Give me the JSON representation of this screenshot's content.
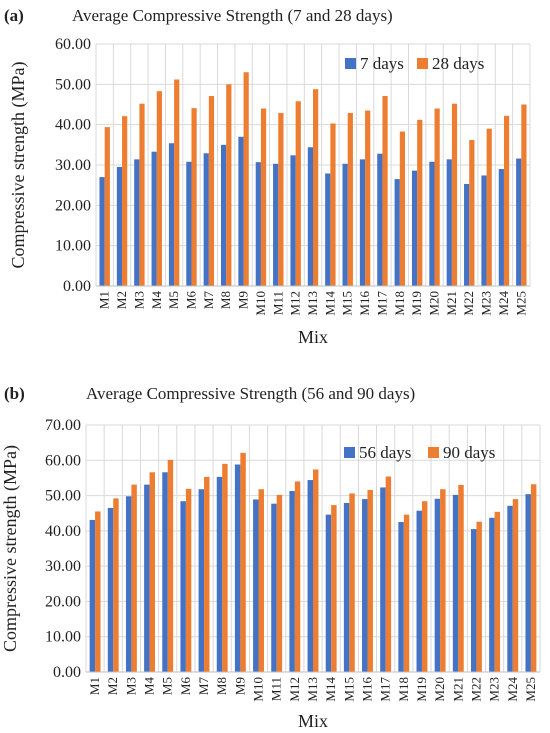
{
  "colors": {
    "series1": "#4472c4",
    "series2": "#ed7d31",
    "grid": "#d9d9d9"
  },
  "chart_data": [
    {
      "panel_label": "(a)",
      "type": "bar",
      "title": "Average Compressive Strength (7 and 28 days)",
      "xlabel": "Mix",
      "ylabel": "Compressive strength (MPa)",
      "ylim": [
        0,
        60
      ],
      "yticks": [
        "0.00",
        "10.00",
        "20.00",
        "30.00",
        "40.00",
        "50.00",
        "60.00"
      ],
      "grid": true,
      "legend_position": "top-right",
      "categories": [
        "M1",
        "M2",
        "M3",
        "M4",
        "M5",
        "M6",
        "M7",
        "M8",
        "M9",
        "M10",
        "M11",
        "M12",
        "M13",
        "M14",
        "M15",
        "M16",
        "M17",
        "M18",
        "M19",
        "M20",
        "M21",
        "M22",
        "M23",
        "M24",
        "M25"
      ],
      "series": [
        {
          "name": "7 days",
          "values": [
            27.0,
            29.5,
            31.4,
            33.3,
            35.4,
            30.8,
            32.9,
            35.0,
            37.0,
            30.7,
            30.3,
            32.4,
            34.4,
            27.9,
            30.3,
            31.4,
            32.8,
            26.5,
            28.6,
            30.8,
            31.4,
            25.3,
            27.4,
            29.0,
            31.6
          ]
        },
        {
          "name": "28 days",
          "values": [
            39.4,
            42.1,
            45.2,
            48.3,
            51.2,
            44.1,
            47.1,
            50.0,
            53.0,
            44.0,
            42.9,
            45.8,
            48.8,
            40.3,
            42.9,
            43.5,
            47.1,
            38.3,
            41.2,
            44.0,
            45.2,
            36.2,
            39.0,
            42.2,
            45.0
          ]
        }
      ]
    },
    {
      "panel_label": "(b)",
      "type": "bar",
      "title": "Average Compressive Strength (56 and 90 days)",
      "xlabel": "Mix",
      "ylabel": "Compressive strength (MPa)",
      "ylim": [
        0,
        70
      ],
      "yticks": [
        "0.00",
        "10.00",
        "20.00",
        "30.00",
        "40.00",
        "50.00",
        "60.00",
        "70.00"
      ],
      "grid": true,
      "legend_position": "top-right",
      "categories": [
        "M1",
        "M2",
        "M3",
        "M4",
        "M5",
        "M6",
        "M7",
        "M8",
        "M9",
        "M10",
        "M11",
        "M12",
        "M13",
        "M14",
        "M15",
        "M16",
        "M17",
        "M18",
        "M19",
        "M20",
        "M21",
        "M22",
        "M23",
        "M24",
        "M25"
      ],
      "series": [
        {
          "name": "56 days",
          "values": [
            43.1,
            46.5,
            49.8,
            53.1,
            56.6,
            48.4,
            51.8,
            55.3,
            58.8,
            48.9,
            47.7,
            51.3,
            54.4,
            44.6,
            47.9,
            49.0,
            52.3,
            42.5,
            45.7,
            49.1,
            50.2,
            40.5,
            43.7,
            47.1,
            50.4
          ]
        },
        {
          "name": "90 days",
          "values": [
            45.5,
            49.2,
            53.1,
            56.6,
            60.1,
            51.9,
            55.3,
            59.0,
            62.1,
            51.8,
            50.2,
            54.0,
            57.4,
            47.3,
            50.6,
            51.6,
            55.4,
            44.6,
            48.4,
            51.8,
            53.0,
            42.6,
            45.4,
            49.0,
            53.2
          ]
        }
      ]
    }
  ]
}
